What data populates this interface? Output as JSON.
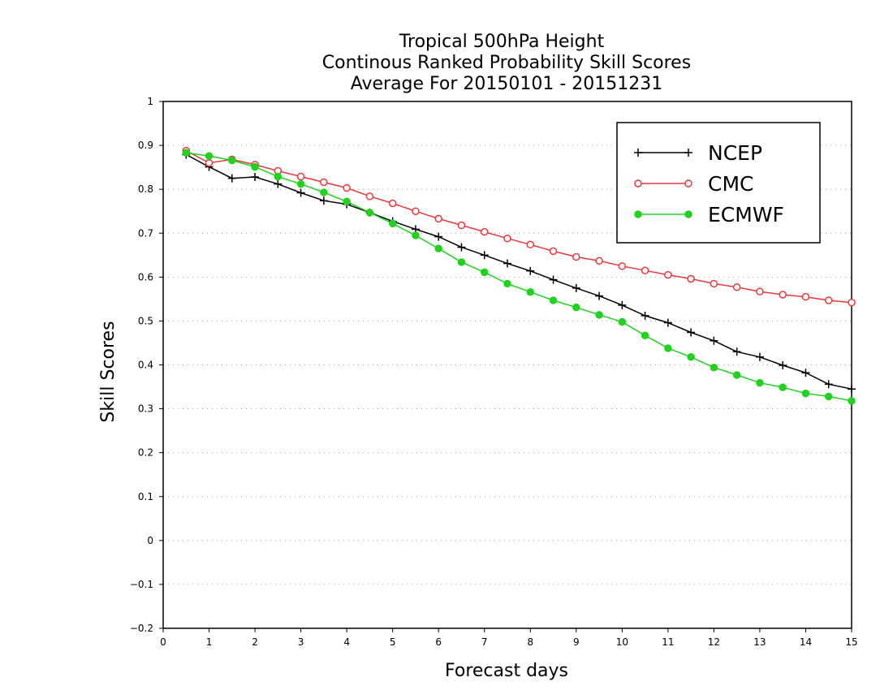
{
  "chart_data": {
    "type": "line",
    "title_lines": [
      "Tropical 500hPa Height",
      "Continous Ranked Probability Skill Scores",
      "Average For 20150101 - 20151231"
    ],
    "xlabel": "Forecast days",
    "ylabel": "Skill Scores",
    "xlim": [
      0,
      15
    ],
    "ylim": [
      -0.2,
      1
    ],
    "x_ticks": [
      "0",
      "1",
      "2",
      "3",
      "4",
      "5",
      "6",
      "7",
      "8",
      "9",
      "10",
      "11",
      "12",
      "13",
      "14",
      "15"
    ],
    "y_ticks": [
      "1",
      "0.9",
      "0.8",
      "0.7",
      "0.6",
      "0.5",
      "0.4",
      "0.3",
      "0.2",
      "0.1",
      "0",
      "−0.1",
      "−0.2"
    ],
    "y_tick_values": [
      1,
      0.9,
      0.8,
      0.7,
      0.6,
      0.5,
      0.4,
      0.3,
      0.2,
      0.1,
      0,
      -0.1,
      -0.2
    ],
    "grid": "dotted-horizontal",
    "legend_position": "top-right",
    "x": [
      0.5,
      1,
      1.5,
      2,
      2.5,
      3,
      3.5,
      4,
      4.5,
      5,
      5.5,
      6,
      6.5,
      7,
      7.5,
      8,
      8.5,
      9,
      9.5,
      10,
      10.5,
      11,
      11.5,
      12,
      12.5,
      13,
      13.5,
      14,
      14.5,
      15
    ],
    "series": [
      {
        "name": "NCEP",
        "color": "#000000",
        "marker": "plus",
        "values": [
          0.879,
          0.851,
          0.825,
          0.828,
          0.812,
          0.792,
          0.774,
          0.766,
          0.747,
          0.727,
          0.709,
          0.692,
          0.668,
          0.65,
          0.631,
          0.614,
          0.594,
          0.575,
          0.557,
          0.536,
          0.512,
          0.496,
          0.474,
          0.455,
          0.43,
          0.418,
          0.399,
          0.382,
          0.356,
          0.345
        ]
      },
      {
        "name": "CMC",
        "color": "#e8383d",
        "marker": "open-circle",
        "values": [
          0.888,
          0.86,
          0.868,
          0.856,
          0.842,
          0.829,
          0.816,
          0.803,
          0.784,
          0.768,
          0.75,
          0.733,
          0.718,
          0.703,
          0.688,
          0.674,
          0.659,
          0.646,
          0.637,
          0.625,
          0.615,
          0.605,
          0.596,
          0.585,
          0.577,
          0.567,
          0.56,
          0.555,
          0.547,
          0.542
        ]
      },
      {
        "name": "ECMWF",
        "color": "#21d21f",
        "marker": "filled-circle",
        "values": [
          0.883,
          0.876,
          0.866,
          0.851,
          0.829,
          0.812,
          0.793,
          0.772,
          0.747,
          0.722,
          0.695,
          0.665,
          0.634,
          0.611,
          0.585,
          0.566,
          0.547,
          0.531,
          0.514,
          0.498,
          0.467,
          0.438,
          0.418,
          0.394,
          0.377,
          0.359,
          0.349,
          0.335,
          0.328,
          0.318
        ]
      }
    ]
  }
}
